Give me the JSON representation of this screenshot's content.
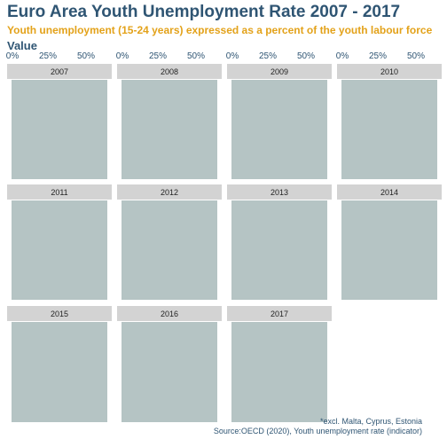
{
  "title": "Euro Area Youth Unemployment Rate 2007 - 2017",
  "subtitle": "Youth unemployment (15-24 years) expressed as a percent of the youth labour force",
  "value_label": "Value",
  "footnote": "*excl. Malta, Cyprus, Estonia",
  "source": "Source:OECD (2020), Youth unemployment rate (indicator)",
  "colors": {
    "title": "#2f5573",
    "subtitle": "#e3a21a",
    "bar": "#b5c4c4",
    "strip": "#d3d3d3"
  },
  "chart_data": {
    "type": "bar",
    "facets": [
      "2007",
      "2008",
      "2009",
      "2010",
      "2011",
      "2012",
      "2013",
      "2014",
      "2015",
      "2016",
      "2017"
    ],
    "x_ticks": [
      "0%",
      "25%",
      "50%"
    ],
    "xlim": [
      0,
      75
    ],
    "ylabel": "Value",
    "grid": false,
    "legend": "none"
  }
}
